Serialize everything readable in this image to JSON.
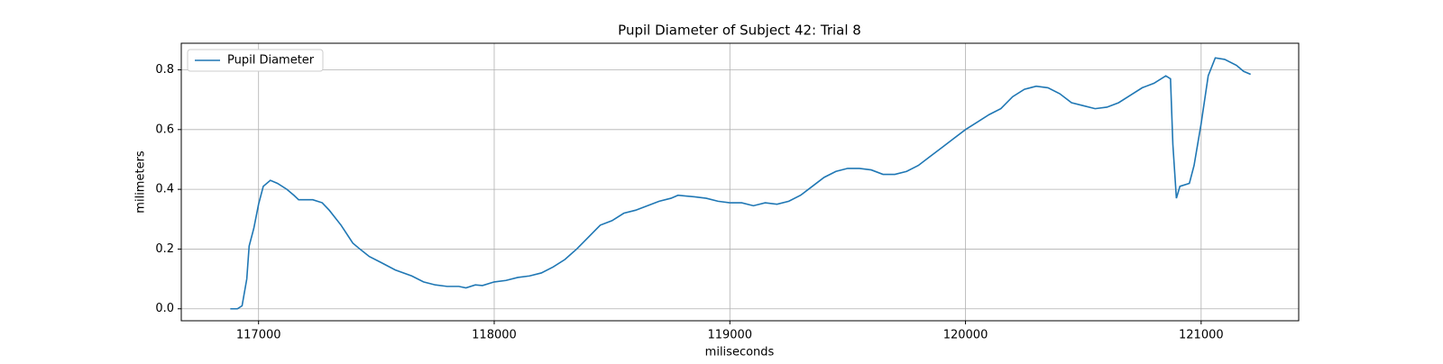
{
  "chart_data": {
    "type": "line",
    "title": "Pupil Diameter of Subject 42: Trial 8",
    "x_label": "miliseconds",
    "y_label": "milimeters",
    "x": [
      116880,
      116910,
      116930,
      116950,
      116960,
      116980,
      117000,
      117020,
      117050,
      117080,
      117120,
      117150,
      117170,
      117200,
      117230,
      117270,
      117300,
      117350,
      117400,
      117430,
      117470,
      117520,
      117580,
      117650,
      117700,
      117750,
      117800,
      117850,
      117880,
      117920,
      117950,
      118000,
      118050,
      118100,
      118150,
      118200,
      118250,
      118300,
      118350,
      118400,
      118450,
      118500,
      118550,
      118600,
      118650,
      118700,
      118750,
      118780,
      118850,
      118900,
      118950,
      119000,
      119050,
      119100,
      119150,
      119200,
      119250,
      119300,
      119350,
      119400,
      119450,
      119500,
      119550,
      119600,
      119650,
      119700,
      119750,
      119800,
      119850,
      119900,
      119950,
      120000,
      120050,
      120100,
      120150,
      120200,
      120250,
      120300,
      120350,
      120400,
      120450,
      120500,
      120550,
      120600,
      120650,
      120700,
      120750,
      120800,
      120850,
      120870,
      120880,
      120895,
      120910,
      120950,
      120970,
      121000,
      121030,
      121060,
      121100,
      121150,
      121180,
      121210
    ],
    "series": [
      {
        "name": "Pupil Diameter",
        "color": "#1f77b4",
        "values": [
          0.0,
          0.0,
          0.01,
          0.1,
          0.21,
          0.27,
          0.35,
          0.41,
          0.43,
          0.42,
          0.4,
          0.38,
          0.365,
          0.365,
          0.365,
          0.355,
          0.33,
          0.28,
          0.22,
          0.2,
          0.175,
          0.155,
          0.13,
          0.11,
          0.09,
          0.08,
          0.075,
          0.075,
          0.07,
          0.08,
          0.078,
          0.09,
          0.095,
          0.105,
          0.11,
          0.12,
          0.14,
          0.165,
          0.2,
          0.24,
          0.28,
          0.295,
          0.32,
          0.33,
          0.345,
          0.36,
          0.37,
          0.38,
          0.375,
          0.37,
          0.36,
          0.355,
          0.355,
          0.345,
          0.355,
          0.35,
          0.36,
          0.38,
          0.41,
          0.44,
          0.46,
          0.47,
          0.47,
          0.465,
          0.45,
          0.45,
          0.46,
          0.48,
          0.51,
          0.54,
          0.57,
          0.6,
          0.625,
          0.65,
          0.67,
          0.71,
          0.735,
          0.745,
          0.74,
          0.72,
          0.69,
          0.68,
          0.67,
          0.675,
          0.69,
          0.715,
          0.74,
          0.755,
          0.78,
          0.77,
          0.55,
          0.37,
          0.41,
          0.42,
          0.48,
          0.62,
          0.78,
          0.84,
          0.835,
          0.815,
          0.795,
          0.785
        ]
      }
    ],
    "xlim": [
      116672,
      121414
    ],
    "ylim": [
      -0.04,
      0.889
    ],
    "xticks": [
      117000,
      118000,
      119000,
      120000,
      121000
    ],
    "yticks": [
      {
        "value": 0.0,
        "label": "0.0"
      },
      0.2,
      0.4,
      0.6,
      0.8
    ],
    "grid": true,
    "legend": "upper left"
  }
}
